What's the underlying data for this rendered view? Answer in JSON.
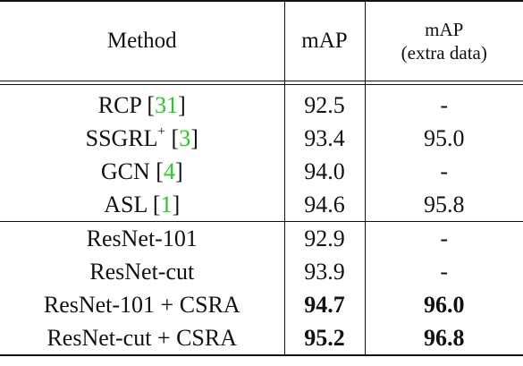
{
  "header": {
    "method": "Method",
    "map": "mAP",
    "map_extra_line1": "mAP",
    "map_extra_line2": "(extra data)"
  },
  "rows_group1": [
    {
      "name": "RCP",
      "sup": "",
      "cite": "31",
      "map": "92.5",
      "extra": "-"
    },
    {
      "name": "SSGRL",
      "sup": "+",
      "cite": "3",
      "map": "93.4",
      "extra": "95.0"
    },
    {
      "name": "GCN",
      "sup": "",
      "cite": "4",
      "map": "94.0",
      "extra": "-"
    },
    {
      "name": "ASL",
      "sup": "",
      "cite": "1",
      "map": "94.6",
      "extra": "95.8"
    }
  ],
  "rows_group2": [
    {
      "name": "ResNet-101",
      "map": "92.9",
      "extra": "-"
    },
    {
      "name": "ResNet-cut",
      "map": "93.9",
      "extra": "-"
    },
    {
      "name": "ResNet-101 + CSRA",
      "map": "94.7",
      "extra": "96.0"
    },
    {
      "name": "ResNet-cut + CSRA",
      "map": "95.2",
      "extra": "96.8"
    }
  ]
}
